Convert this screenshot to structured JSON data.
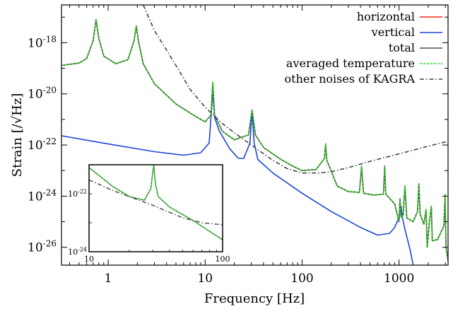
{
  "chart_data": {
    "type": "line",
    "xlabel": "Frequency [Hz]",
    "ylabel": "Strain [/√Hz]",
    "xscale": "log",
    "yscale": "log",
    "xlim": [
      0.33,
      3200
    ],
    "ylim": [
      2e-27,
      3e-17
    ],
    "x_ticks": [
      {
        "value": 1,
        "label": "1"
      },
      {
        "value": 10,
        "label": "10"
      },
      {
        "value": 100,
        "label": "100"
      },
      {
        "value": 1000,
        "label": "1000"
      }
    ],
    "y_ticks": [
      {
        "value": 1e-18,
        "base": "10",
        "exp": "-18"
      },
      {
        "value": 1e-20,
        "base": "10",
        "exp": "-20"
      },
      {
        "value": 1e-22,
        "base": "10",
        "exp": "-22"
      },
      {
        "value": 1e-24,
        "base": "10",
        "exp": "-24"
      },
      {
        "value": 1e-26,
        "base": "10",
        "exp": "-26"
      }
    ],
    "legend": {
      "placement": "top-right",
      "entries": [
        {
          "label": "horizontal",
          "series": "horizontal"
        },
        {
          "label": "vertical",
          "series": "vertical"
        },
        {
          "label": "total",
          "series": "total"
        },
        {
          "label": "averaged temperature",
          "series": "averaged"
        },
        {
          "label": "other noises of KAGRA",
          "series": "other"
        }
      ]
    },
    "series": [
      {
        "name": "horizontal",
        "color": "#e8281c",
        "style": "solid",
        "points": [
          [
            0.33,
            1.3e-19
          ],
          [
            0.5,
            1.6e-19
          ],
          [
            0.6,
            2.4e-19
          ],
          [
            0.7,
            1.2e-18
          ],
          [
            0.75,
            8e-18
          ],
          [
            0.8,
            1.5e-18
          ],
          [
            0.9,
            3e-19
          ],
          [
            1.2,
            1.5e-19
          ],
          [
            1.6,
            2.2e-19
          ],
          [
            1.85,
            1.2e-18
          ],
          [
            1.95,
            4.5e-18
          ],
          [
            2.05,
            1.2e-18
          ],
          [
            2.3,
            1.5e-19
          ],
          [
            3,
            2.5e-20
          ],
          [
            5,
            4e-21
          ],
          [
            8,
            1.3e-21
          ],
          [
            10,
            8e-22
          ],
          [
            11.5,
            1.5e-21
          ],
          [
            12,
            2.8e-20
          ],
          [
            12.5,
            1.5e-21
          ],
          [
            15,
            3.5e-22
          ],
          [
            20,
            1.6e-22
          ],
          [
            28,
            2.5e-22
          ],
          [
            30.5,
            2.3e-21
          ],
          [
            33,
            2.5e-22
          ],
          [
            40,
            8e-23
          ],
          [
            60,
            2.8e-23
          ],
          [
            80,
            1.5e-23
          ],
          [
            100,
            1e-23
          ],
          [
            140,
            1.1e-23
          ],
          [
            170,
            3e-23
          ],
          [
            175,
            1.1e-22
          ],
          [
            180,
            2.5e-23
          ],
          [
            230,
            2.5e-24
          ],
          [
            300,
            1.5e-24
          ],
          [
            390,
            1.4e-24
          ],
          [
            410,
            1.5e-23
          ],
          [
            430,
            1.3e-24
          ],
          [
            550,
            1.1e-24
          ],
          [
            690,
            1.2e-24
          ],
          [
            710,
            1.5e-23
          ],
          [
            730,
            1.2e-24
          ],
          [
            900,
            5e-25
          ],
          [
            1000,
            1e-25
          ],
          [
            1020,
            8e-25
          ],
          [
            1050,
            1.5e-25
          ],
          [
            1100,
            1.8e-25
          ],
          [
            1150,
            2.5e-24
          ],
          [
            1200,
            1.4e-25
          ],
          [
            1400,
            1e-25
          ],
          [
            1550,
            2.5e-25
          ],
          [
            1600,
            3e-24
          ],
          [
            1650,
            2e-25
          ],
          [
            1800,
            8e-26
          ],
          [
            1900,
            3e-25
          ],
          [
            1950,
            1e-26
          ],
          [
            2050,
            9e-26
          ],
          [
            2150,
            4e-25
          ],
          [
            2200,
            1.8e-26
          ],
          [
            2500,
            2e-26
          ],
          [
            2900,
            7e-26
          ],
          [
            2980,
            1.2e-24
          ],
          [
            3050,
            1e-26
          ],
          [
            3200,
            3e-27
          ]
        ]
      },
      {
        "name": "vertical",
        "color": "#1d45d8",
        "style": "solid",
        "points": [
          [
            0.33,
            2.3e-22
          ],
          [
            1,
            1.1e-22
          ],
          [
            3,
            5.5e-23
          ],
          [
            6,
            4e-23
          ],
          [
            9,
            5e-23
          ],
          [
            11,
            1.2e-22
          ],
          [
            12,
            1.2e-20
          ],
          [
            12.5,
            1.2e-21
          ],
          [
            14,
            3.5e-22
          ],
          [
            18,
            7e-23
          ],
          [
            22,
            3e-23
          ],
          [
            25,
            3e-23
          ],
          [
            29,
            1.2e-22
          ],
          [
            30.5,
            2.2e-21
          ],
          [
            32,
            1.2e-22
          ],
          [
            35,
            2.7e-23
          ],
          [
            50,
            8e-24
          ],
          [
            100,
            1.3e-24
          ],
          [
            200,
            2.5e-25
          ],
          [
            400,
            6e-26
          ],
          [
            600,
            3e-26
          ],
          [
            800,
            3.5e-26
          ],
          [
            900,
            6e-26
          ],
          [
            1000,
            1.5e-25
          ],
          [
            1050,
            4e-25
          ],
          [
            1080,
            1.5e-25
          ],
          [
            1150,
            5e-26
          ],
          [
            1300,
            8e-27
          ],
          [
            1400,
            2e-27
          ]
        ]
      },
      {
        "name": "total",
        "color": "#505050",
        "style": "solid",
        "points": [
          [
            0.33,
            1.3e-19
          ],
          [
            0.5,
            1.6e-19
          ],
          [
            0.6,
            2.4e-19
          ],
          [
            0.7,
            1.2e-18
          ],
          [
            0.75,
            8e-18
          ],
          [
            0.8,
            1.5e-18
          ],
          [
            0.9,
            3e-19
          ],
          [
            1.2,
            1.5e-19
          ],
          [
            1.6,
            2.2e-19
          ],
          [
            1.85,
            1.2e-18
          ],
          [
            1.95,
            4.5e-18
          ],
          [
            2.05,
            1.2e-18
          ],
          [
            2.3,
            1.5e-19
          ],
          [
            3,
            2.5e-20
          ],
          [
            5,
            4e-21
          ],
          [
            8,
            1.3e-21
          ],
          [
            10,
            8e-22
          ],
          [
            11.5,
            1.5e-21
          ],
          [
            12,
            2.8e-20
          ],
          [
            12.5,
            1.5e-21
          ],
          [
            15,
            3.5e-22
          ],
          [
            20,
            1.6e-22
          ],
          [
            28,
            2.5e-22
          ],
          [
            30.5,
            2.3e-21
          ],
          [
            33,
            2.5e-22
          ],
          [
            40,
            8e-23
          ],
          [
            60,
            2.8e-23
          ],
          [
            80,
            1.5e-23
          ],
          [
            100,
            1e-23
          ],
          [
            140,
            1.1e-23
          ],
          [
            170,
            3e-23
          ],
          [
            175,
            1.1e-22
          ],
          [
            180,
            2.5e-23
          ],
          [
            230,
            2.5e-24
          ],
          [
            300,
            1.5e-24
          ],
          [
            390,
            1.4e-24
          ],
          [
            410,
            1.5e-23
          ],
          [
            430,
            1.3e-24
          ],
          [
            550,
            1.1e-24
          ],
          [
            690,
            1.2e-24
          ],
          [
            710,
            1.5e-23
          ],
          [
            730,
            1.2e-24
          ],
          [
            900,
            5e-25
          ],
          [
            1000,
            1e-25
          ],
          [
            1020,
            8e-25
          ],
          [
            1050,
            1.5e-25
          ],
          [
            1100,
            1.8e-25
          ],
          [
            1150,
            2.5e-24
          ],
          [
            1200,
            1.4e-25
          ],
          [
            1400,
            1e-25
          ],
          [
            1550,
            2.5e-25
          ],
          [
            1600,
            3e-24
          ],
          [
            1650,
            2e-25
          ],
          [
            1800,
            8e-26
          ],
          [
            1900,
            3e-25
          ],
          [
            1950,
            1e-26
          ],
          [
            2050,
            9e-26
          ],
          [
            2150,
            4e-25
          ],
          [
            2200,
            1.8e-26
          ],
          [
            2500,
            2e-26
          ],
          [
            2900,
            7e-26
          ],
          [
            2980,
            1.2e-24
          ],
          [
            3050,
            1e-26
          ],
          [
            3200,
            3e-27
          ]
        ]
      },
      {
        "name": "averaged temperature",
        "color": "#22dd22",
        "style": "dotted",
        "points": [
          [
            0.33,
            1.3e-19
          ],
          [
            0.5,
            1.6e-19
          ],
          [
            0.6,
            2.4e-19
          ],
          [
            0.7,
            1.2e-18
          ],
          [
            0.75,
            8e-18
          ],
          [
            0.8,
            1.5e-18
          ],
          [
            0.9,
            3e-19
          ],
          [
            1.2,
            1.5e-19
          ],
          [
            1.6,
            2.2e-19
          ],
          [
            1.85,
            1.2e-18
          ],
          [
            1.95,
            4.5e-18
          ],
          [
            2.05,
            1.2e-18
          ],
          [
            2.3,
            1.5e-19
          ],
          [
            3,
            2.5e-20
          ],
          [
            5,
            4e-21
          ],
          [
            8,
            1.3e-21
          ],
          [
            10,
            8e-22
          ],
          [
            11.5,
            1.5e-21
          ],
          [
            12,
            2.8e-20
          ],
          [
            12.5,
            1.5e-21
          ],
          [
            15,
            3.5e-22
          ],
          [
            20,
            1.6e-22
          ],
          [
            28,
            2.5e-22
          ],
          [
            30.5,
            2.3e-21
          ],
          [
            33,
            2.5e-22
          ],
          [
            40,
            8e-23
          ],
          [
            60,
            2.8e-23
          ],
          [
            80,
            1.5e-23
          ],
          [
            100,
            1e-23
          ],
          [
            140,
            1.1e-23
          ],
          [
            170,
            3e-23
          ],
          [
            175,
            1.1e-22
          ],
          [
            180,
            2.5e-23
          ],
          [
            230,
            2.5e-24
          ],
          [
            300,
            1.5e-24
          ],
          [
            390,
            1.4e-24
          ],
          [
            410,
            1.5e-23
          ],
          [
            430,
            1.3e-24
          ],
          [
            550,
            1.1e-24
          ],
          [
            690,
            1.2e-24
          ],
          [
            710,
            1.5e-23
          ],
          [
            730,
            1.2e-24
          ],
          [
            900,
            5e-25
          ],
          [
            1000,
            1e-25
          ],
          [
            1020,
            8e-25
          ],
          [
            1050,
            1.5e-25
          ],
          [
            1100,
            1.8e-25
          ],
          [
            1150,
            2.5e-24
          ],
          [
            1200,
            1.4e-25
          ],
          [
            1400,
            1e-25
          ],
          [
            1550,
            2.5e-25
          ],
          [
            1600,
            3e-24
          ],
          [
            1650,
            2e-25
          ],
          [
            1800,
            8e-26
          ],
          [
            1900,
            3e-25
          ],
          [
            1950,
            1e-26
          ],
          [
            2050,
            9e-26
          ],
          [
            2150,
            4e-25
          ],
          [
            2200,
            1.8e-26
          ],
          [
            2500,
            2e-26
          ],
          [
            2900,
            7e-26
          ],
          [
            2980,
            1.2e-24
          ],
          [
            3050,
            1e-26
          ],
          [
            3200,
            3e-27
          ]
        ]
      },
      {
        "name": "other noises of KAGRA",
        "color": "#444444",
        "style": "dashdot",
        "points": [
          [
            2.3,
            3e-17
          ],
          [
            3,
            3e-18
          ],
          [
            5,
            1.3e-19
          ],
          [
            7,
            1.5e-20
          ],
          [
            10,
            3e-21
          ],
          [
            15,
            7e-22
          ],
          [
            20,
            3e-22
          ],
          [
            30,
            1e-22
          ],
          [
            50,
            2.5e-23
          ],
          [
            70,
            1.2e-23
          ],
          [
            100,
            8e-24
          ],
          [
            150,
            8e-24
          ],
          [
            200,
            9e-24
          ],
          [
            300,
            1.3e-23
          ],
          [
            500,
            2.3e-23
          ],
          [
            1000,
            4.5e-23
          ],
          [
            2000,
            9e-23
          ],
          [
            3200,
            1.4e-22
          ]
        ]
      }
    ],
    "inset": {
      "xlim": [
        10,
        100
      ],
      "ylim": [
        1e-24,
        1e-21
      ],
      "x_ticks": [
        {
          "value": 10,
          "label": "10"
        },
        {
          "value": 100,
          "label": "100"
        }
      ],
      "y_ticks": [
        {
          "value": 1e-22,
          "base": "10",
          "exp": "-22"
        },
        {
          "value": 1e-24,
          "base": "10",
          "exp": "-24"
        }
      ],
      "series": [
        {
          "name": "total",
          "color": "#505050",
          "style": "solid",
          "points": [
            [
              10,
              8e-22
            ],
            [
              15,
              1.8e-22
            ],
            [
              20,
              8e-23
            ],
            [
              26,
              6e-23
            ],
            [
              29,
              1.5e-22
            ],
            [
              30.5,
              1e-21
            ],
            [
              31.5,
              2e-22
            ],
            [
              33,
              8e-23
            ],
            [
              40,
              3.5e-23
            ],
            [
              60,
              1.2e-23
            ],
            [
              80,
              5e-24
            ],
            [
              100,
              2.6e-24
            ]
          ]
        },
        {
          "name": "averaged temperature",
          "color": "#22dd22",
          "style": "dotted",
          "points": [
            [
              10,
              8e-22
            ],
            [
              15,
              1.8e-22
            ],
            [
              20,
              8e-23
            ],
            [
              26,
              6e-23
            ],
            [
              29,
              1.5e-22
            ],
            [
              30.5,
              1e-21
            ],
            [
              31.5,
              2e-22
            ],
            [
              33,
              8e-23
            ],
            [
              40,
              3.5e-23
            ],
            [
              60,
              1.2e-23
            ],
            [
              80,
              5e-24
            ],
            [
              100,
              2.6e-24
            ]
          ]
        },
        {
          "name": "other noises of KAGRA",
          "color": "#444444",
          "style": "dashdot",
          "points": [
            [
              10,
              3e-22
            ],
            [
              15,
              1.3e-22
            ],
            [
              20,
              8e-23
            ],
            [
              30,
              4e-23
            ],
            [
              50,
              1.5e-23
            ],
            [
              70,
              1e-23
            ],
            [
              100,
              8.5e-24
            ]
          ]
        }
      ]
    }
  }
}
